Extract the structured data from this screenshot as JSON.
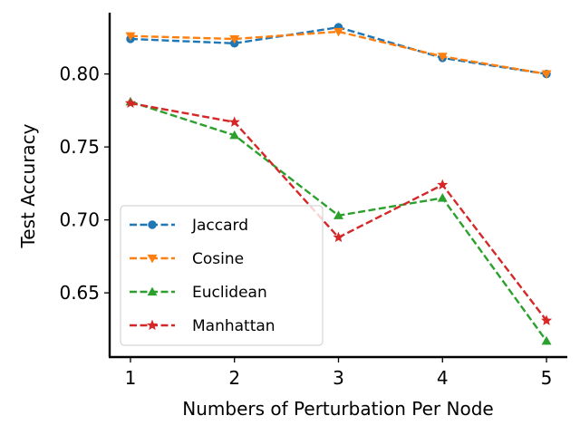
{
  "chart_data": {
    "type": "line",
    "xlabel": "Numbers of Perturbation Per Node",
    "ylabel": "Test Accuracy",
    "x": [
      1,
      2,
      3,
      4,
      5
    ],
    "x_ticks": [
      "1",
      "2",
      "3",
      "4",
      "5"
    ],
    "y_ticks": [
      "0.65",
      "0.70",
      "0.75",
      "0.80"
    ],
    "xlim": [
      0.8,
      5.2
    ],
    "ylim": [
      0.606,
      0.842
    ],
    "grid": false,
    "legend_position": "lower-left",
    "series": [
      {
        "name": "Jaccard",
        "color": "#1f77b4",
        "marker": "circle",
        "values": [
          0.824,
          0.821,
          0.832,
          0.811,
          0.8
        ]
      },
      {
        "name": "Cosine",
        "color": "#ff7f0e",
        "marker": "triangle-down",
        "values": [
          0.826,
          0.824,
          0.829,
          0.812,
          0.8
        ]
      },
      {
        "name": "Euclidean",
        "color": "#2ca02c",
        "marker": "triangle-up",
        "values": [
          0.781,
          0.758,
          0.703,
          0.715,
          0.617
        ]
      },
      {
        "name": "Manhattan",
        "color": "#d62728",
        "marker": "star",
        "values": [
          0.78,
          0.767,
          0.688,
          0.724,
          0.631
        ]
      }
    ]
  }
}
